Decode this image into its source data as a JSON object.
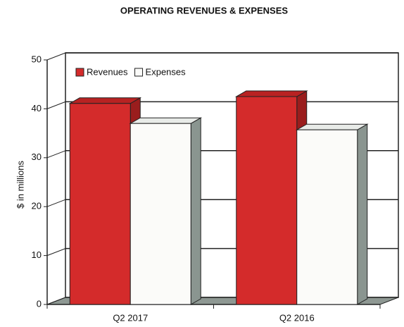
{
  "chart_data": {
    "type": "bar3d",
    "title": "OPERATING REVENUES & EXPENSES",
    "y_label": "$ in millions",
    "categories": [
      "Q2 2017",
      "Q2 2016"
    ],
    "series": [
      {
        "name": "Revenues",
        "color": "#d42b2b",
        "values": [
          41.1,
          42.5
        ]
      },
      {
        "name": "Expenses",
        "color": "#fbfbf9",
        "values": [
          37.0,
          35.7
        ]
      }
    ],
    "ylim": [
      0,
      50
    ],
    "yticks": [
      0,
      10,
      20,
      30,
      40,
      50
    ],
    "grid": true,
    "legend": "top-left"
  }
}
